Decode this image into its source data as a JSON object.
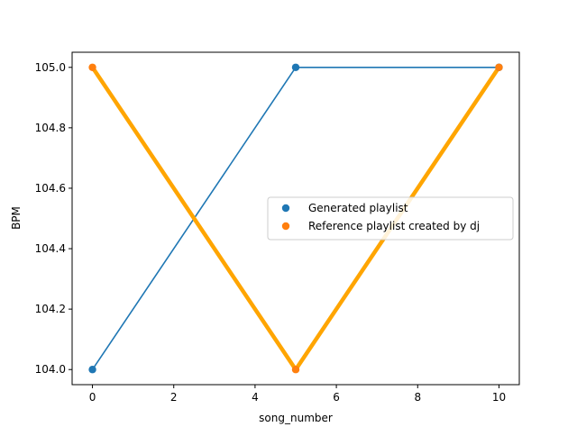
{
  "chart_data": {
    "type": "line",
    "title": "",
    "xlabel": "song_number",
    "ylabel": "BPM",
    "xlim": [
      -0.5,
      10.5
    ],
    "ylim": [
      103.95,
      105.05
    ],
    "x_ticks": [
      0,
      2,
      4,
      6,
      8,
      10
    ],
    "x_tick_labels": [
      "0",
      "2",
      "4",
      "6",
      "8",
      "10"
    ],
    "y_ticks": [
      104.0,
      104.2,
      104.4,
      104.6,
      104.8,
      105.0
    ],
    "y_tick_labels": [
      "104.0",
      "104.2",
      "104.4",
      "104.6",
      "104.8",
      "105.0"
    ],
    "grid": false,
    "legend_position": "center-right",
    "series": [
      {
        "name": "Generated playlist",
        "x": [
          0,
          5,
          10
        ],
        "values": [
          104.0,
          105.0,
          105.0
        ],
        "line_color": "#1f77b4",
        "marker_color": "#1f77b4",
        "line_style": "thin"
      },
      {
        "name": "Reference playlist created by dj",
        "x": [
          0,
          5,
          10
        ],
        "values": [
          105.0,
          104.0,
          105.0
        ],
        "line_color": "#ffa500",
        "marker_color": "#ff7f0e",
        "line_style": "thick"
      }
    ]
  }
}
